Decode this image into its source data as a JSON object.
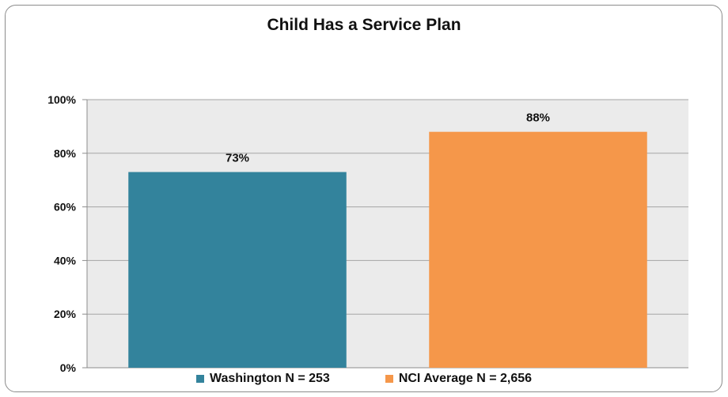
{
  "chart_data": {
    "type": "bar",
    "title": "Child Has a Service Plan",
    "categories": [
      "Washington N = 253",
      "NCI Average N = 2,656"
    ],
    "values": [
      73,
      88
    ],
    "data_labels": [
      "73%",
      "88%"
    ],
    "colors": [
      "#33839c",
      "#f5974a"
    ],
    "ylim": [
      0,
      100
    ],
    "yticks": [
      0,
      20,
      40,
      60,
      80,
      100
    ],
    "ytick_labels": [
      "0%",
      "20%",
      "40%",
      "60%",
      "80%",
      "100%"
    ],
    "grid": true,
    "plot_background": "#ebebeb",
    "legend": "bottom",
    "xlabel": "",
    "ylabel": ""
  }
}
